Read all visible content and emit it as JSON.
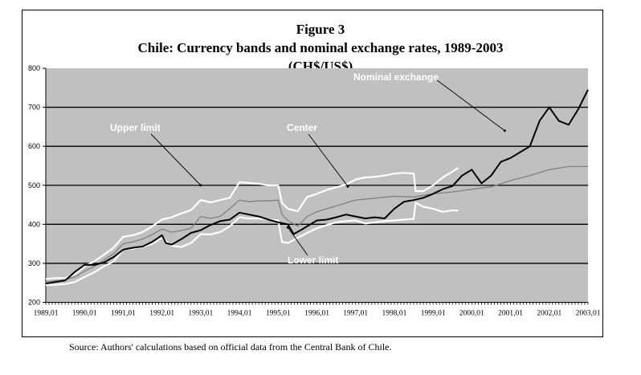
{
  "figure": {
    "label": "Figure 3",
    "title": "Chile: Currency bands and nominal exchange rates, 1989-2003",
    "units": "(CH$/US$)",
    "source": "Source: Authors' calculations based on official data from the Central Bank of Chile."
  },
  "colors": {
    "plot_background": "#c0c0c0",
    "gridline": "#000000",
    "nominal": "#000000",
    "upper": "#ffffff",
    "lower": "#ffffff",
    "center": "#808080",
    "annotation_text": "#ffffff"
  },
  "chart_data": {
    "type": "line",
    "title": "Chile: Currency bands and nominal exchange rates, 1989-2003",
    "subtitle": "(CH$/US$)",
    "xlabel": "",
    "ylabel": "",
    "ylim": [
      200,
      800
    ],
    "xlim": [
      1989.0,
      2003.0
    ],
    "grid": true,
    "yticks": [
      "200",
      "300",
      "400",
      "500",
      "600",
      "700",
      "800"
    ],
    "yticks_values": [
      200,
      300,
      400,
      500,
      600,
      700,
      800
    ],
    "xticks": [
      "1989,01",
      "1990,01",
      "1991,01",
      "1992,01",
      "1993,01",
      "1994,01",
      "1995,01",
      "1996,01",
      "1997,01",
      "1998,01",
      "1999,01",
      "2000,01",
      "2001,01",
      "2002,01",
      "2003,01"
    ],
    "xticks_values": [
      1989,
      1990,
      1991,
      1992,
      1993,
      1994,
      1995,
      1996,
      1997,
      1998,
      1999,
      2000,
      2001,
      2002,
      2003
    ],
    "annotations": [
      {
        "text": "Upper limit",
        "series": "Upper limit",
        "position": "upper-left",
        "arrow_to": [
          1993.0,
          500
        ]
      },
      {
        "text": "Center",
        "series": "Center",
        "position": "upper-center",
        "arrow_to": [
          1996.8,
          497
        ]
      },
      {
        "text": "Nominal exchange",
        "series": "Nominal exchange",
        "position": "top-center",
        "arrow_to": [
          2000.85,
          640
        ]
      },
      {
        "text": "Lower limit",
        "series": "Lower limit",
        "position": "bottom-center",
        "arrow_to": [
          1995.25,
          392
        ]
      }
    ],
    "series": [
      {
        "name": "Upper limit",
        "x": [
          1989.0,
          1989.25,
          1989.5,
          1989.75,
          1990.0,
          1990.25,
          1990.5,
          1990.75,
          1991.0,
          1991.25,
          1991.5,
          1991.75,
          1992.0,
          1992.25,
          1992.5,
          1992.75,
          1993.0,
          1993.25,
          1993.5,
          1993.75,
          1994.0,
          1994.25,
          1994.5,
          1994.75,
          1995.0,
          1995.1,
          1995.25,
          1995.5,
          1995.75,
          1996.0,
          1996.25,
          1996.5,
          1996.75,
          1997.0,
          1997.25,
          1997.5,
          1997.75,
          1998.0,
          1998.25,
          1998.5,
          1998.55,
          1998.75,
          1999.0,
          1999.25,
          1999.5,
          1999.65
        ],
        "y": [
          260,
          262,
          262,
          272,
          292,
          305,
          322,
          340,
          368,
          372,
          380,
          395,
          412,
          418,
          428,
          436,
          462,
          456,
          462,
          468,
          508,
          506,
          504,
          500,
          500,
          455,
          440,
          433,
          470,
          478,
          488,
          495,
          502,
          515,
          520,
          522,
          525,
          530,
          532,
          530,
          485,
          485,
          500,
          520,
          535,
          545
        ]
      },
      {
        "name": "Center",
        "x": [
          1989.0,
          1989.25,
          1989.5,
          1989.75,
          1990.0,
          1990.25,
          1990.5,
          1990.75,
          1991.0,
          1991.25,
          1991.5,
          1991.75,
          1992.0,
          1992.25,
          1992.5,
          1992.75,
          1993.0,
          1993.25,
          1993.5,
          1993.75,
          1994.0,
          1994.25,
          1994.5,
          1994.75,
          1995.0,
          1995.1,
          1995.25,
          1995.5,
          1995.75,
          1996.0,
          1996.25,
          1996.5,
          1996.75,
          1997.0,
          1997.5,
          1998.0,
          1998.5,
          1999.0,
          1999.5,
          2000.0,
          2000.5,
          2001.0,
          2001.5,
          2002.0,
          2002.5,
          2003.0
        ],
        "y": [
          252,
          255,
          258,
          265,
          280,
          292,
          308,
          325,
          350,
          355,
          362,
          374,
          388,
          380,
          384,
          390,
          420,
          415,
          420,
          440,
          462,
          458,
          460,
          460,
          462,
          425,
          410,
          395,
          420,
          432,
          440,
          447,
          455,
          462,
          467,
          472,
          470,
          478,
          483,
          490,
          496,
          512,
          525,
          540,
          548,
          548
        ]
      },
      {
        "name": "Lower limit",
        "x": [
          1989.0,
          1989.25,
          1989.5,
          1989.75,
          1990.0,
          1990.25,
          1990.5,
          1990.75,
          1991.0,
          1991.25,
          1991.5,
          1991.75,
          1992.0,
          1992.25,
          1992.5,
          1992.75,
          1993.0,
          1993.25,
          1993.5,
          1993.75,
          1994.0,
          1994.25,
          1994.5,
          1994.75,
          1995.0,
          1995.1,
          1995.25,
          1995.5,
          1995.75,
          1996.0,
          1996.25,
          1996.5,
          1996.75,
          1997.0,
          1997.25,
          1997.5,
          1997.75,
          1998.0,
          1998.25,
          1998.5,
          1998.55,
          1998.75,
          1999.0,
          1999.25,
          1999.5,
          1999.65
        ],
        "y": [
          244,
          245,
          247,
          252,
          265,
          277,
          292,
          305,
          335,
          338,
          342,
          350,
          365,
          345,
          342,
          352,
          375,
          374,
          380,
          395,
          418,
          415,
          415,
          412,
          410,
          355,
          352,
          365,
          378,
          390,
          398,
          405,
          408,
          410,
          402,
          405,
          408,
          410,
          412,
          414,
          455,
          445,
          440,
          432,
          436,
          435
        ]
      },
      {
        "name": "Nominal exchange",
        "x": [
          1989.0,
          1989.25,
          1989.5,
          1989.75,
          1990.0,
          1990.25,
          1990.5,
          1990.75,
          1991.0,
          1991.25,
          1991.5,
          1991.75,
          1992.0,
          1992.1,
          1992.25,
          1992.5,
          1992.75,
          1993.0,
          1993.25,
          1993.5,
          1993.75,
          1994.0,
          1994.25,
          1994.5,
          1994.75,
          1995.0,
          1995.25,
          1995.4,
          1995.6,
          1995.75,
          1996.0,
          1996.25,
          1996.5,
          1996.75,
          1997.0,
          1997.25,
          1997.5,
          1997.75,
          1998.0,
          1998.25,
          1998.5,
          1998.75,
          1999.0,
          1999.25,
          1999.5,
          1999.75,
          2000.0,
          2000.25,
          2000.5,
          2000.75,
          2001.0,
          2001.25,
          2001.5,
          2001.75,
          2002.0,
          2002.25,
          2002.5,
          2002.75,
          2003.0
        ],
        "y": [
          248,
          252,
          256,
          278,
          296,
          296,
          302,
          316,
          335,
          340,
          343,
          355,
          372,
          352,
          348,
          362,
          378,
          385,
          398,
          408,
          412,
          430,
          425,
          420,
          412,
          405,
          400,
          375,
          386,
          395,
          410,
          412,
          418,
          425,
          420,
          415,
          418,
          415,
          440,
          458,
          462,
          468,
          478,
          490,
          498,
          525,
          540,
          505,
          525,
          560,
          570,
          585,
          600,
          665,
          700,
          665,
          655,
          695,
          745
        ]
      }
    ]
  }
}
